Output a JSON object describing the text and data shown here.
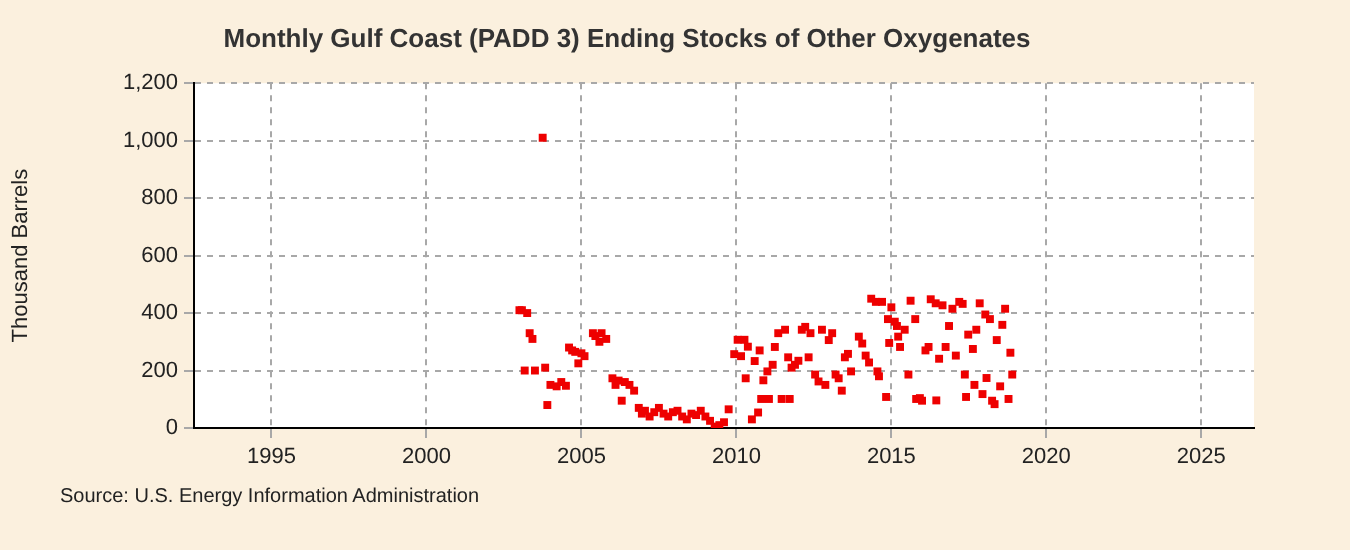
{
  "chart_data": {
    "type": "scatter",
    "title": "Monthly Gulf Coast (PADD 3) Ending Stocks of Other Oxygenates",
    "ylabel": "Thousand Barrels",
    "annotations": [
      "Source: U.S. Energy Information Administration"
    ],
    "x": [
      2003.0,
      2003.08,
      2003.17,
      2003.25,
      2003.33,
      2003.42,
      2003.5,
      2003.75,
      2003.83,
      2003.9,
      2004.0,
      2004.2,
      2004.35,
      2004.5,
      2004.6,
      2004.7,
      2004.8,
      2004.9,
      2005.0,
      2005.1,
      2005.37,
      2005.45,
      2005.58,
      2005.65,
      2005.8,
      2006.0,
      2006.1,
      2006.2,
      2006.3,
      2006.4,
      2006.55,
      2006.7,
      2006.85,
      2006.95,
      2007.05,
      2007.2,
      2007.35,
      2007.5,
      2007.65,
      2007.8,
      2007.95,
      2008.1,
      2008.25,
      2008.4,
      2008.55,
      2008.7,
      2008.85,
      2009.0,
      2009.15,
      2009.3,
      2009.45,
      2009.6,
      2009.75,
      2009.93,
      2010.04,
      2010.15,
      2010.26,
      2010.3,
      2010.37,
      2010.5,
      2010.59,
      2010.7,
      2010.75,
      2010.8,
      2010.87,
      2011.0,
      2011.05,
      2011.17,
      2011.24,
      2011.35,
      2011.46,
      2011.57,
      2011.67,
      2011.72,
      2011.78,
      2011.89,
      2012.0,
      2012.11,
      2012.22,
      2012.33,
      2012.39,
      2012.54,
      2012.65,
      2012.76,
      2012.87,
      2012.98,
      2013.09,
      2013.2,
      2013.3,
      2013.4,
      2013.5,
      2013.6,
      2013.7,
      2013.95,
      2014.06,
      2014.17,
      2014.28,
      2014.35,
      2014.5,
      2014.55,
      2014.6,
      2014.7,
      2014.83,
      2014.89,
      2014.93,
      2015.0,
      2015.11,
      2015.18,
      2015.22,
      2015.28,
      2015.43,
      2015.55,
      2015.62,
      2015.77,
      2015.8,
      2015.92,
      2015.99,
      2016.1,
      2016.2,
      2016.27,
      2016.43,
      2016.45,
      2016.54,
      2016.65,
      2016.75,
      2016.86,
      2016.97,
      2017.08,
      2017.19,
      2017.3,
      2017.37,
      2017.41,
      2017.48,
      2017.63,
      2017.68,
      2017.74,
      2017.85,
      2017.94,
      2018.03,
      2018.07,
      2018.18,
      2018.25,
      2018.33,
      2018.4,
      2018.51,
      2018.58,
      2018.67,
      2018.78,
      2018.84,
      2018.9
    ],
    "values": [
      410,
      410,
      200,
      400,
      330,
      310,
      200,
      1010,
      210,
      80,
      150,
      145,
      160,
      147,
      280,
      270,
      265,
      225,
      260,
      250,
      330,
      320,
      300,
      330,
      310,
      173,
      150,
      165,
      95,
      160,
      150,
      130,
      70,
      50,
      60,
      40,
      55,
      70,
      50,
      40,
      55,
      60,
      40,
      30,
      50,
      45,
      60,
      40,
      25,
      5,
      10,
      20,
      65,
      257,
      307,
      250,
      307,
      173,
      283,
      30,
      233,
      54,
      270,
      101,
      166,
      197,
      101,
      220,
      282,
      330,
      101,
      342,
      246,
      101,
      210,
      220,
      234,
      342,
      352,
      246,
      330,
      186,
      162,
      342,
      150,
      306,
      330,
      186,
      173,
      130,
      246,
      258,
      197,
      318,
      294,
      252,
      228,
      450,
      439,
      197,
      180,
      439,
      108,
      379,
      296,
      420,
      370,
      355,
      318,
      282,
      342,
      186,
      443,
      379,
      101,
      104,
      95,
      270,
      282,
      448,
      434,
      96,
      241,
      427,
      282,
      355,
      415,
      252,
      439,
      432,
      186,
      108,
      325,
      275,
      150,
      342,
      434,
      118,
      395,
      174,
      379,
      95,
      83,
      306,
      145,
      359,
      415,
      101,
      262,
      186
    ],
    "color": "#ee0000",
    "marker": "square",
    "grid": true,
    "xlim": [
      1992.5,
      2026.7
    ],
    "xticks": [
      1995,
      2000,
      2005,
      2010,
      2015,
      2020,
      2025
    ],
    "ylim": [
      0,
      1200
    ],
    "yticks": [
      0,
      200,
      400,
      600,
      800,
      {
        "value": 1000,
        "label": "1,000"
      },
      {
        "value": 1200,
        "label": "1,200"
      }
    ]
  }
}
